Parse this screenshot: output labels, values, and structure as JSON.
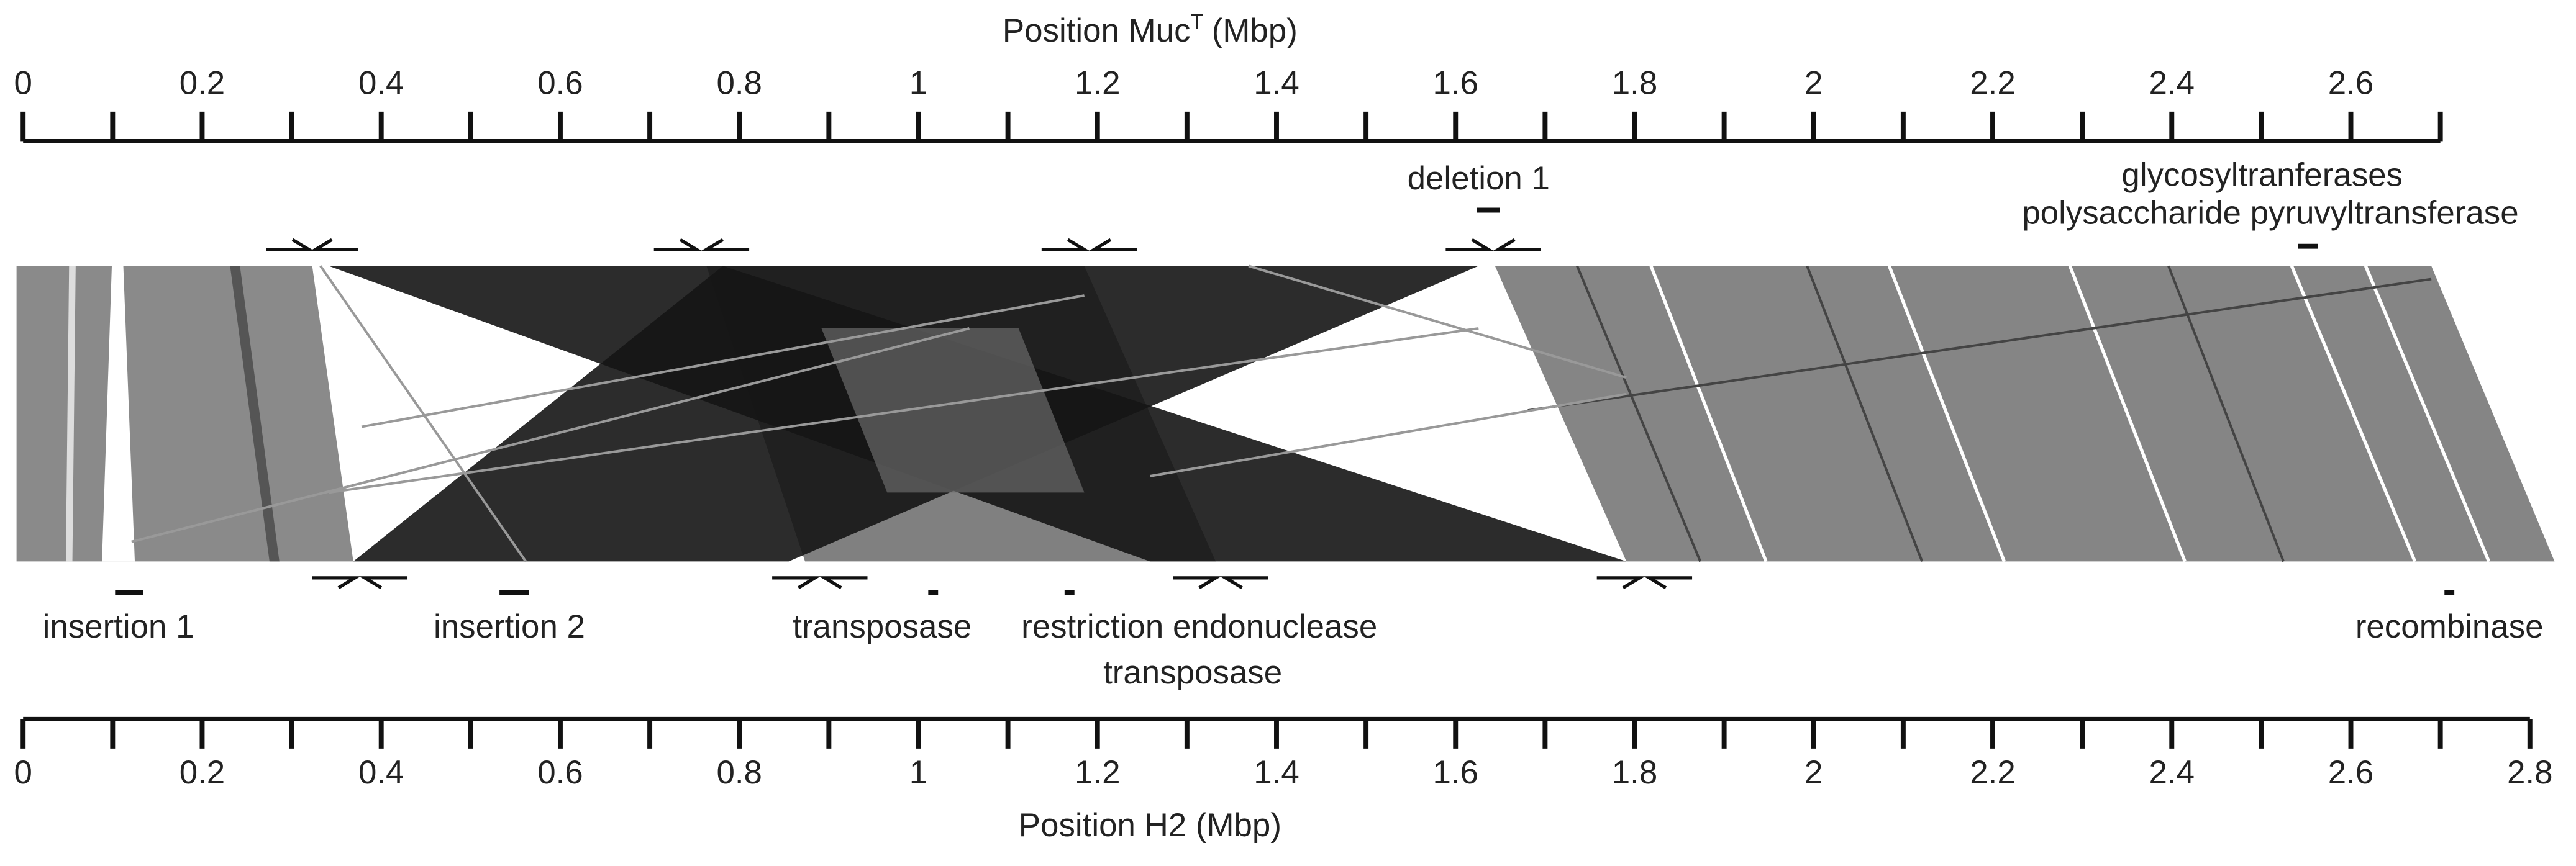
{
  "top_axis": {
    "title": "Position Muc",
    "title_superscript": "T",
    "title_unit": "(Mbp)",
    "xlim": [
      0,
      2.7
    ],
    "ticks": [
      0,
      0.2,
      0.4,
      0.6,
      0.8,
      1,
      1.2,
      1.4,
      1.6,
      1.8,
      2,
      2.2,
      2.4,
      2.6
    ],
    "minor_ticks": [
      0.1,
      0.3,
      0.5,
      0.7,
      0.9,
      1.1,
      1.3,
      1.5,
      1.7,
      1.9,
      2.1,
      2.3,
      2.5,
      2.7
    ]
  },
  "bottom_axis": {
    "title": "Position H2 (Mbp)",
    "xlim": [
      0,
      2.8
    ],
    "ticks": [
      0,
      0.2,
      0.4,
      0.6,
      0.8,
      1,
      1.2,
      1.4,
      1.6,
      1.8,
      2,
      2.2,
      2.4,
      2.6,
      2.8
    ],
    "minor_ticks": [
      0.1,
      0.3,
      0.5,
      0.7,
      0.9,
      1.1,
      1.3,
      1.5,
      1.7,
      1.9,
      2.1,
      2.3,
      2.5,
      2.7
    ]
  },
  "top_annotations": [
    "deletion 1",
    "glycosyltranferases",
    "polysaccharide pyruvyltransferase"
  ],
  "bottom_annotations": [
    "insertion 1",
    "insertion 2",
    "transposase",
    "restriction endonuclease",
    "transposase",
    "recombinase"
  ]
}
